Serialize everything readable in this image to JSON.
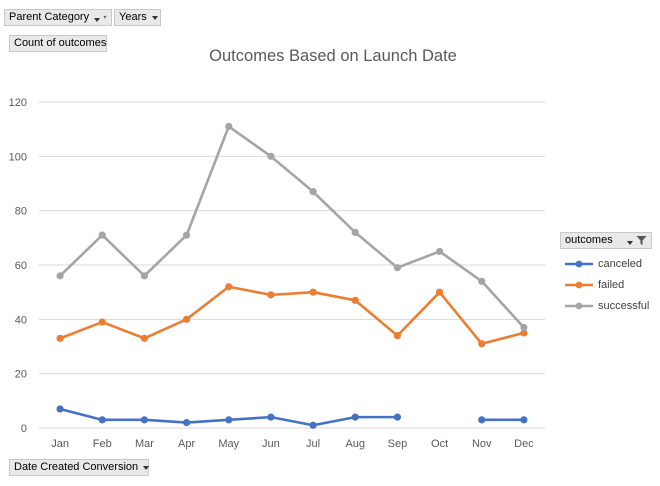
{
  "filters": {
    "parent_category": "Parent Category",
    "years": "Years",
    "value_field": "Count of outcomes",
    "axis_field": "Date Created Conversion",
    "legend_field": "outcomes"
  },
  "chart_data": {
    "type": "line",
    "title": "Outcomes Based on Launch Date",
    "xlabel": "",
    "ylabel": "",
    "categories": [
      "Jan",
      "Feb",
      "Mar",
      "Apr",
      "May",
      "Jun",
      "Jul",
      "Aug",
      "Sep",
      "Oct",
      "Nov",
      "Dec"
    ],
    "ylim": [
      0,
      120
    ],
    "yticks": [
      0,
      20,
      40,
      60,
      80,
      100,
      120
    ],
    "grid": true,
    "legend_position": "right",
    "series": [
      {
        "name": "canceled",
        "color": "#4472c4",
        "values": [
          7,
          3,
          3,
          2,
          3,
          4,
          1,
          4,
          4,
          null,
          3,
          3
        ]
      },
      {
        "name": "failed",
        "color": "#ed7d31",
        "values": [
          33,
          39,
          33,
          40,
          52,
          49,
          50,
          47,
          34,
          50,
          31,
          35
        ]
      },
      {
        "name": "successful",
        "color": "#a5a5a5",
        "values": [
          56,
          71,
          56,
          71,
          111,
          100,
          87,
          72,
          59,
          65,
          54,
          37
        ]
      }
    ]
  }
}
